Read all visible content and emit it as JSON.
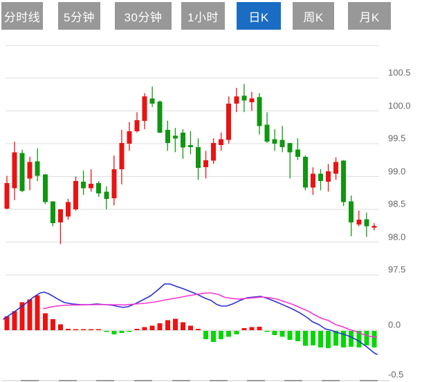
{
  "toolbar": {
    "tabs": [
      {
        "label": "分时线",
        "active": false
      },
      {
        "label": "5分钟",
        "active": false
      },
      {
        "label": "30分钟",
        "active": false
      },
      {
        "label": "1小时",
        "active": false
      },
      {
        "label": "日K",
        "active": true
      },
      {
        "label": "周K",
        "active": false
      },
      {
        "label": "月K",
        "active": false
      }
    ],
    "active_bg": "#1a6dc2",
    "inactive_bg": "#989898",
    "text_color": "#ffffff"
  },
  "colors": {
    "up_red": "#e81414",
    "down_green": "#109610",
    "hist_pos_red": "#ee1111",
    "hist_neg_green": "#00d800",
    "dif_line_blue": "#2b2fd4",
    "dea_line_magenta": "#f735d2",
    "grid": "#dedede",
    "zero_line": "#cfcfcf",
    "bottom_axis": "#c8c8c8",
    "bottom_tick": "#9a9a9a",
    "axis_text": "#666666"
  },
  "chart_data": [
    {
      "type": "candlestick",
      "title": "",
      "xlabel": "",
      "ylabel": "price",
      "grid": true,
      "legend_position": "none",
      "ylim": [
        97.3,
        101.0
      ],
      "gridline_prices": [
        101.0,
        100.5,
        100.0,
        99.5,
        99.0,
        98.5,
        98.0,
        97.5
      ],
      "y_axis_labels": [
        "100.5",
        "100.0",
        "99.5",
        "99.0",
        "98.5",
        "98.0",
        "97.5"
      ],
      "up_means": "close >= open drawn red (Chinese convention), close < open drawn green",
      "candles_ohlc": [
        [
          98.51,
          99.01,
          98.5,
          98.9
        ],
        [
          98.82,
          99.53,
          98.64,
          99.37
        ],
        [
          99.36,
          99.41,
          98.76,
          98.78
        ],
        [
          98.97,
          99.3,
          98.79,
          99.22
        ],
        [
          99.23,
          99.43,
          98.93,
          99.01
        ],
        [
          99.03,
          99.04,
          98.58,
          98.61
        ],
        [
          98.62,
          98.62,
          98.24,
          98.29
        ],
        [
          98.3,
          98.5,
          97.97,
          98.5
        ],
        [
          98.39,
          98.66,
          98.34,
          98.61
        ],
        [
          98.5,
          99.0,
          98.48,
          98.93
        ],
        [
          98.92,
          99.09,
          98.72,
          98.82
        ],
        [
          98.82,
          99.11,
          98.77,
          98.89
        ],
        [
          98.9,
          98.93,
          98.69,
          98.74
        ],
        [
          98.77,
          98.85,
          98.5,
          98.66
        ],
        [
          98.67,
          99.32,
          98.56,
          99.11
        ],
        [
          99.11,
          99.71,
          98.88,
          99.51
        ],
        [
          99.5,
          99.83,
          99.39,
          99.69
        ],
        [
          99.69,
          99.98,
          99.67,
          99.86
        ],
        [
          99.85,
          100.27,
          99.72,
          100.22
        ],
        [
          100.19,
          100.37,
          100.06,
          100.11
        ],
        [
          100.14,
          100.16,
          99.66,
          99.67
        ],
        [
          99.71,
          99.85,
          99.39,
          99.51
        ],
        [
          99.62,
          99.74,
          99.37,
          99.58
        ],
        [
          99.67,
          99.72,
          99.27,
          99.44
        ],
        [
          99.48,
          99.69,
          99.34,
          99.45
        ],
        [
          99.45,
          99.58,
          98.95,
          99.13
        ],
        [
          99.14,
          99.39,
          98.97,
          99.25
        ],
        [
          99.24,
          99.58,
          99.19,
          99.51
        ],
        [
          99.48,
          99.67,
          99.39,
          99.57
        ],
        [
          99.56,
          100.22,
          99.5,
          100.11
        ],
        [
          100.11,
          100.35,
          99.98,
          100.22
        ],
        [
          100.23,
          100.41,
          99.98,
          100.16
        ],
        [
          100.13,
          100.29,
          100.0,
          100.19
        ],
        [
          100.21,
          100.27,
          99.64,
          99.77
        ],
        [
          99.79,
          99.98,
          99.51,
          99.53
        ],
        [
          99.57,
          99.72,
          99.39,
          99.5
        ],
        [
          99.56,
          99.77,
          99.37,
          99.45
        ],
        [
          99.51,
          99.51,
          98.97,
          99.37
        ],
        [
          99.41,
          99.58,
          99.25,
          99.3
        ],
        [
          99.3,
          99.32,
          98.79,
          98.83
        ],
        [
          98.83,
          99.14,
          98.72,
          99.04
        ],
        [
          99.04,
          99.11,
          98.79,
          98.93
        ],
        [
          98.92,
          99.19,
          98.77,
          99.08
        ],
        [
          99.04,
          99.29,
          98.95,
          99.22
        ],
        [
          99.24,
          99.25,
          98.55,
          98.61
        ],
        [
          98.62,
          98.71,
          98.09,
          98.3
        ],
        [
          98.27,
          98.48,
          98.24,
          98.34
        ],
        [
          98.35,
          98.45,
          98.08,
          98.24
        ],
        [
          98.22,
          98.29,
          98.18,
          98.25
        ]
      ]
    },
    {
      "type": "macd",
      "title": "",
      "grid": true,
      "ylim": [
        -0.55,
        0.52
      ],
      "y_axis_labels": [
        "0.0",
        "-0.5"
      ],
      "histogram": [
        0.14,
        0.19,
        0.28,
        0.31,
        0.35,
        0.17,
        0.11,
        0.06,
        0.015,
        0.008,
        0.008,
        0.008,
        0.008,
        -0.01,
        -0.035,
        -0.02,
        -0.008,
        0.015,
        0.03,
        0.045,
        0.07,
        0.1,
        0.115,
        0.08,
        0.045,
        0.015,
        -0.085,
        -0.11,
        -0.085,
        -0.06,
        -0.035,
        0.02,
        0.03,
        0.035,
        -0.005,
        -0.04,
        -0.06,
        -0.09,
        -0.105,
        -0.15,
        -0.145,
        -0.165,
        -0.175,
        -0.15,
        -0.165,
        -0.16,
        -0.165,
        -0.145,
        -0.165
      ],
      "dif_line": [
        [
          5,
          0.111
        ],
        [
          20,
          0.181
        ],
        [
          35,
          0.257
        ],
        [
          47,
          0.326
        ],
        [
          58,
          0.375
        ],
        [
          64,
          0.382
        ],
        [
          70,
          0.368
        ],
        [
          82,
          0.319
        ],
        [
          93,
          0.278
        ],
        [
          105,
          0.264
        ],
        [
          117,
          0.257
        ],
        [
          128,
          0.257
        ],
        [
          140,
          0.264
        ],
        [
          152,
          0.257
        ],
        [
          163,
          0.25
        ],
        [
          172,
          0.236
        ],
        [
          178,
          0.229
        ],
        [
          185,
          0.236
        ],
        [
          197,
          0.271
        ],
        [
          207,
          0.306
        ],
        [
          218,
          0.347
        ],
        [
          229,
          0.41
        ],
        [
          238,
          0.465
        ],
        [
          246,
          0.464
        ],
        [
          255,
          0.44
        ],
        [
          265,
          0.417
        ],
        [
          275,
          0.389
        ],
        [
          285,
          0.361
        ],
        [
          295,
          0.326
        ],
        [
          305,
          0.299
        ],
        [
          313,
          0.26
        ],
        [
          320,
          0.243
        ],
        [
          328,
          0.244
        ],
        [
          337,
          0.266
        ],
        [
          347,
          0.299
        ],
        [
          357,
          0.326
        ],
        [
          367,
          0.333
        ],
        [
          377,
          0.34
        ],
        [
          388,
          0.316
        ],
        [
          398,
          0.288
        ],
        [
          410,
          0.252
        ],
        [
          422,
          0.215
        ],
        [
          433,
          0.176
        ],
        [
          443,
          0.132
        ],
        [
          452,
          0.083
        ],
        [
          461,
          0.056
        ],
        [
          470,
          0.014
        ],
        [
          478,
          0.0
        ],
        [
          486,
          -0.021
        ],
        [
          497,
          -0.042
        ],
        [
          508,
          -0.069
        ],
        [
          519,
          -0.111
        ],
        [
          530,
          -0.167
        ],
        [
          541,
          -0.229
        ],
        [
          545,
          -0.243
        ]
      ],
      "dea_line": [
        [
          63,
          0.215
        ],
        [
          72,
          0.231
        ],
        [
          82,
          0.243
        ],
        [
          93,
          0.25
        ],
        [
          105,
          0.254
        ],
        [
          120,
          0.254
        ],
        [
          140,
          0.257
        ],
        [
          160,
          0.257
        ],
        [
          180,
          0.254
        ],
        [
          197,
          0.264
        ],
        [
          210,
          0.271
        ],
        [
          225,
          0.285
        ],
        [
          240,
          0.306
        ],
        [
          255,
          0.323
        ],
        [
          270,
          0.344
        ],
        [
          285,
          0.361
        ],
        [
          295,
          0.372
        ],
        [
          305,
          0.375
        ],
        [
          315,
          0.361
        ],
        [
          325,
          0.33
        ],
        [
          335,
          0.319
        ],
        [
          345,
          0.313
        ],
        [
          355,
          0.319
        ],
        [
          367,
          0.326
        ],
        [
          378,
          0.333
        ],
        [
          390,
          0.326
        ],
        [
          400,
          0.313
        ],
        [
          412,
          0.285
        ],
        [
          424,
          0.257
        ],
        [
          435,
          0.222
        ],
        [
          445,
          0.194
        ],
        [
          455,
          0.153
        ],
        [
          465,
          0.118
        ],
        [
          475,
          0.097
        ],
        [
          485,
          0.056
        ],
        [
          495,
          0.035
        ],
        [
          505,
          0.007
        ],
        [
          515,
          -0.014
        ],
        [
          525,
          -0.042
        ],
        [
          535,
          -0.063
        ],
        [
          545,
          -0.07
        ]
      ]
    }
  ]
}
